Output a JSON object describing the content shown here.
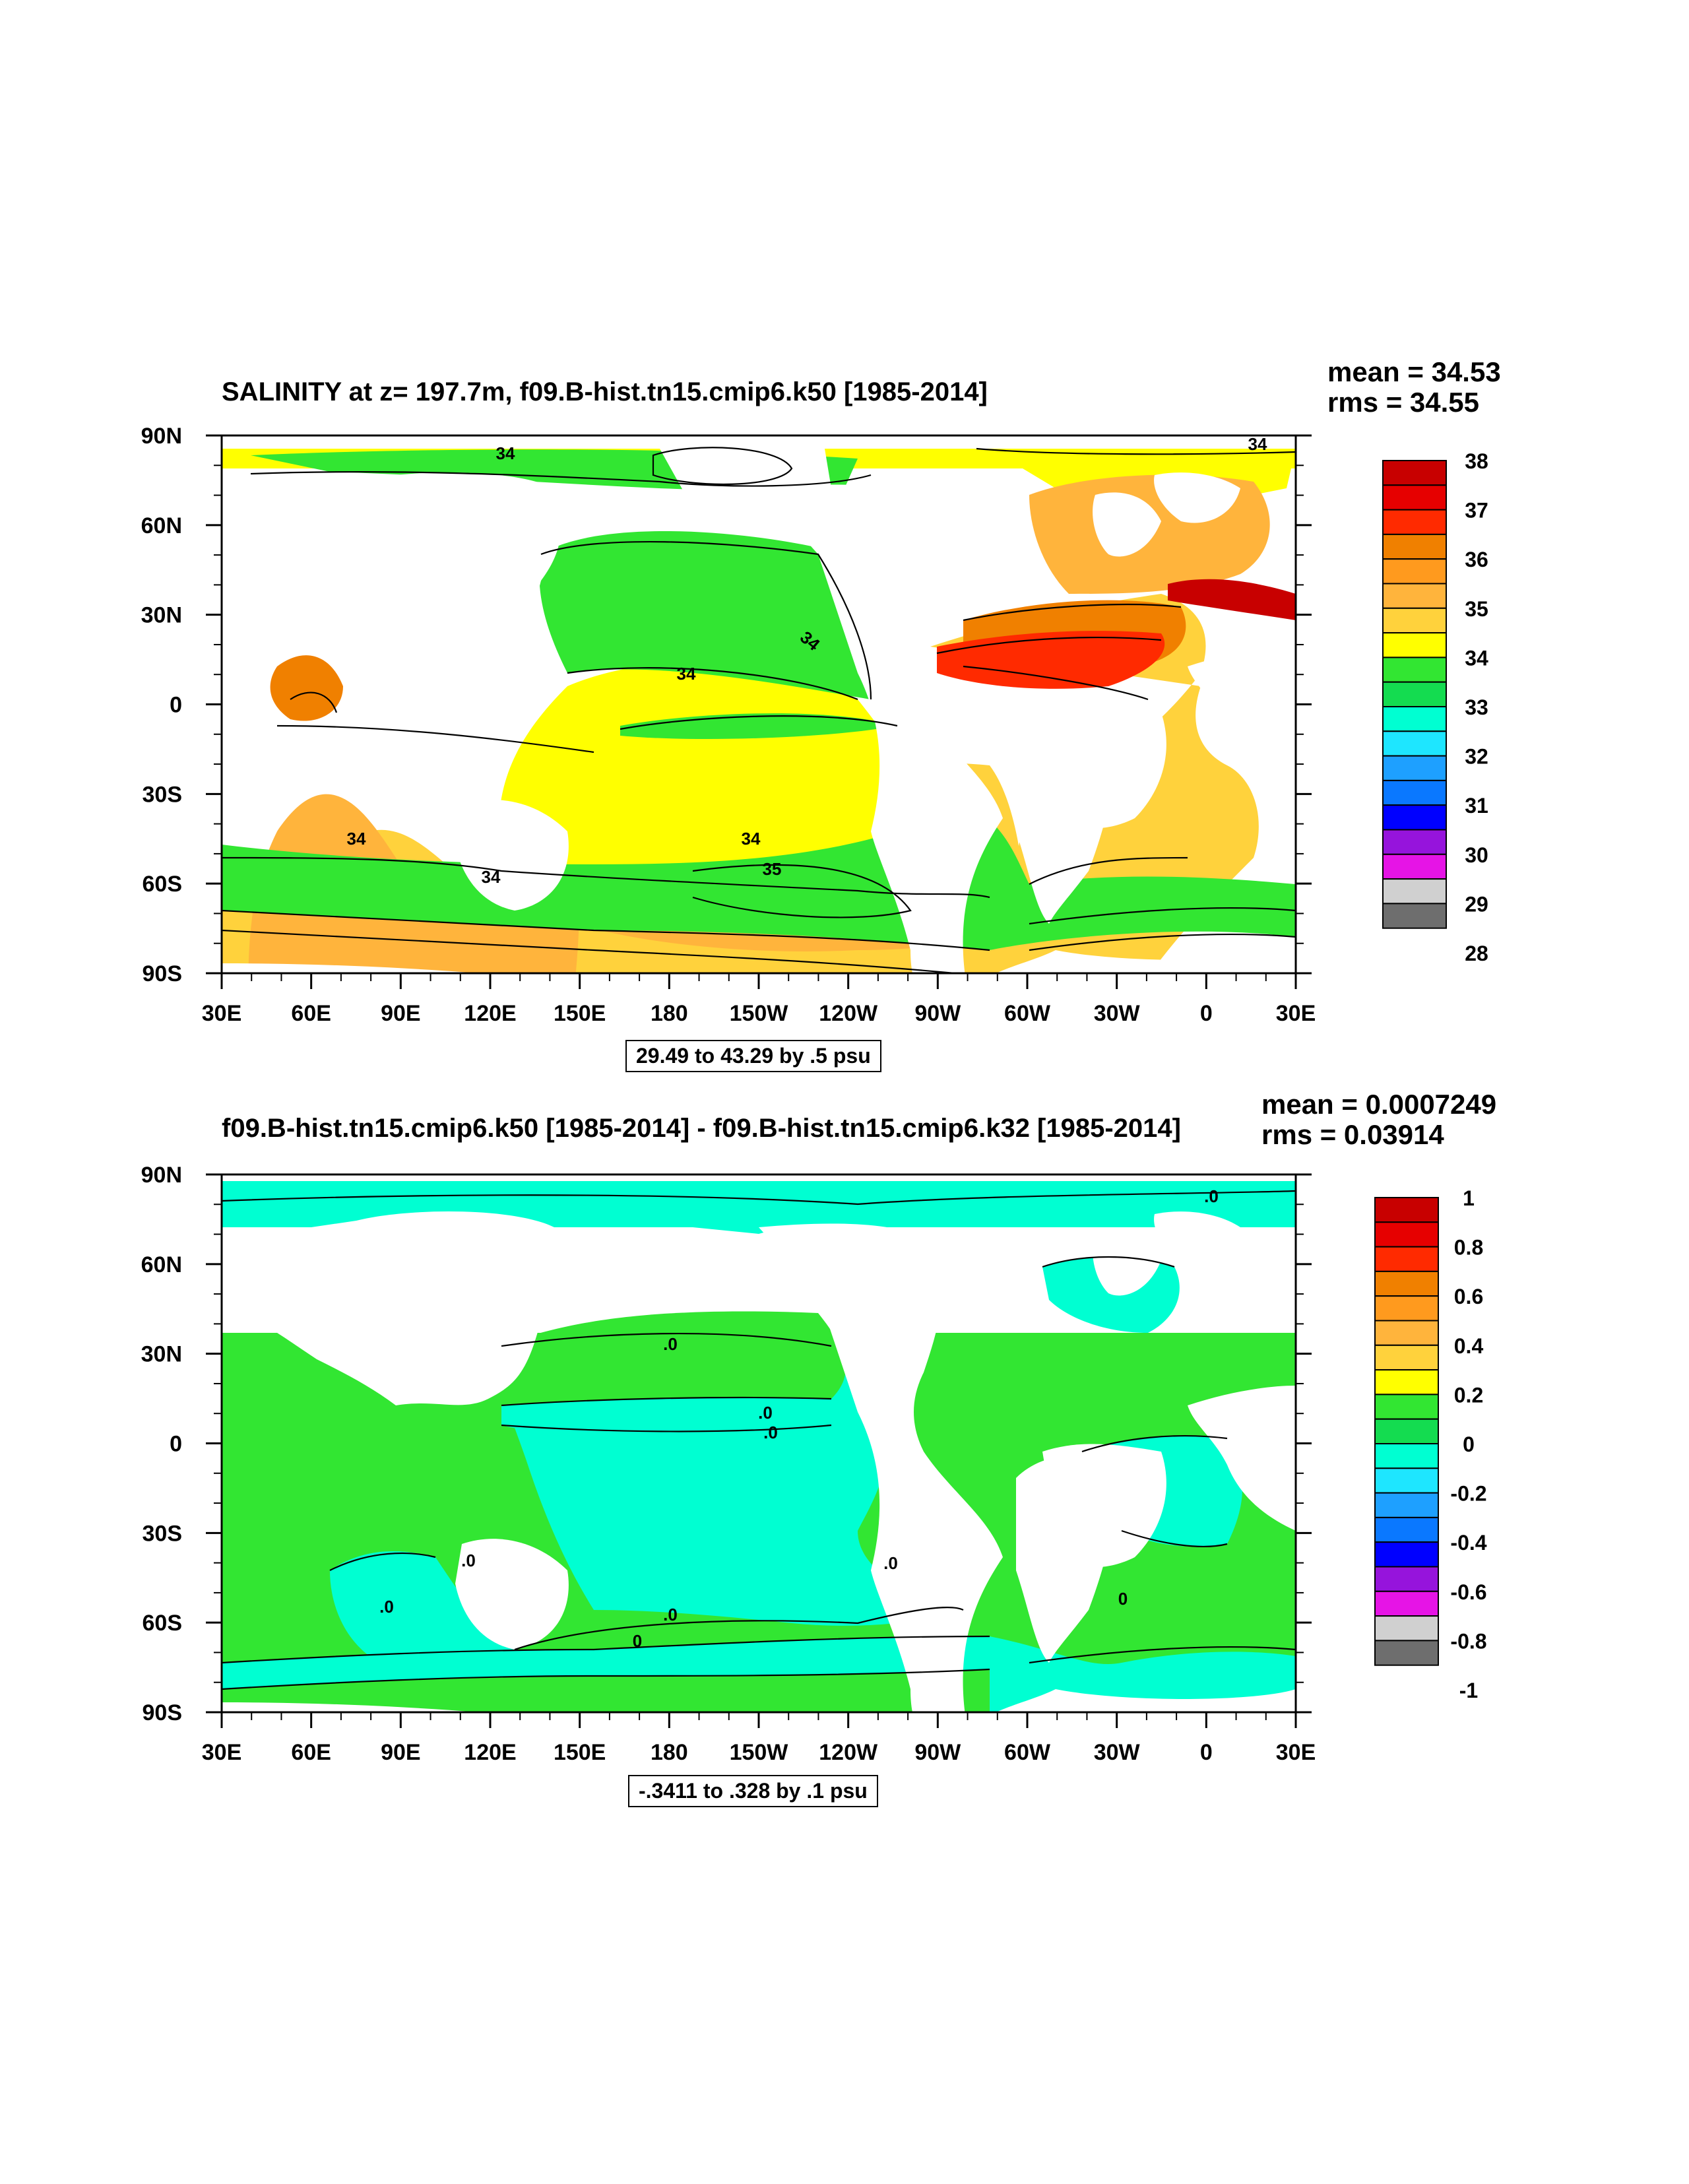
{
  "colors": {
    "red_dark": "#c80000",
    "red": "#e60000",
    "red_orange": "#ff2a00",
    "orange": "#f08000",
    "orange_light": "#ff9a1e",
    "amber": "#ffb43c",
    "gold": "#ffd23c",
    "yellow": "#ffff00",
    "green": "#32e632",
    "green_bright": "#14dc50",
    "teal": "#00ffd2",
    "cyan": "#1ee6ff",
    "azure": "#1ea0ff",
    "blue_mid": "#0a78ff",
    "blue": "#0000ff",
    "purple": "#9614dc",
    "magenta": "#e614e6",
    "gray_light": "#d0d0d0",
    "gray_dark": "#6e6e6e",
    "land": "#ffffff"
  },
  "x_ticks": [
    "30E",
    "60E",
    "90E",
    "120E",
    "150E",
    "180",
    "150W",
    "120W",
    "90W",
    "60W",
    "30W",
    "0",
    "30E"
  ],
  "y_ticks": [
    "90N",
    "60N",
    "30N",
    "0",
    "30S",
    "60S",
    "90S"
  ],
  "panels": [
    {
      "id": "top",
      "title": "SALINITY at z= 197.7m, f09.B-hist.tn15.cmip6.k50 [1985-2014]",
      "mean": "mean = 34.53",
      "rms": "rms = 34.55",
      "contour_info": "29.49 to 43.29 by .5 psu",
      "colorbar_labels": [
        "38",
        "37",
        "36",
        "35",
        "34",
        "33",
        "32",
        "31",
        "30",
        "29",
        "28"
      ],
      "contour_labels": [
        "34",
        "34",
        "34",
        "34",
        "34",
        "34",
        "34",
        "35"
      ],
      "colorbar_colors": [
        "#c80000",
        "#e60000",
        "#ff2a00",
        "#f08000",
        "#ff9a1e",
        "#ffb43c",
        "#ffd23c",
        "#ffff00",
        "#32e632",
        "#14dc50",
        "#00ffd2",
        "#1ee6ff",
        "#1ea0ff",
        "#0a78ff",
        "#0000ff",
        "#9614dc",
        "#e614e6",
        "#d0d0d0",
        "#6e6e6e"
      ]
    },
    {
      "id": "bottom",
      "title": "f09.B-hist.tn15.cmip6.k50 [1985-2014] - f09.B-hist.tn15.cmip6.k32 [1985-2014]",
      "mean": "mean = 0.0007249",
      "rms": "rms = 0.03914",
      "contour_info": "-.3411 to .328 by .1 psu",
      "colorbar_labels": [
        "1",
        "0.8",
        "0.6",
        "0.4",
        "0.2",
        "0",
        "-0.2",
        "-0.4",
        "-0.6",
        "-0.8",
        "-1"
      ],
      "contour_labels": [
        ".0",
        ".0",
        ".0",
        ".0",
        ".0",
        ".0",
        ".0",
        ".0",
        "0",
        "0"
      ],
      "colorbar_colors": [
        "#c80000",
        "#e60000",
        "#ff2a00",
        "#f08000",
        "#ff9a1e",
        "#ffb43c",
        "#ffd23c",
        "#ffff00",
        "#32e632",
        "#14dc50",
        "#00ffd2",
        "#1ee6ff",
        "#1ea0ff",
        "#0a78ff",
        "#0000ff",
        "#9614dc",
        "#e614e6",
        "#d0d0d0",
        "#6e6e6e"
      ]
    }
  ]
}
